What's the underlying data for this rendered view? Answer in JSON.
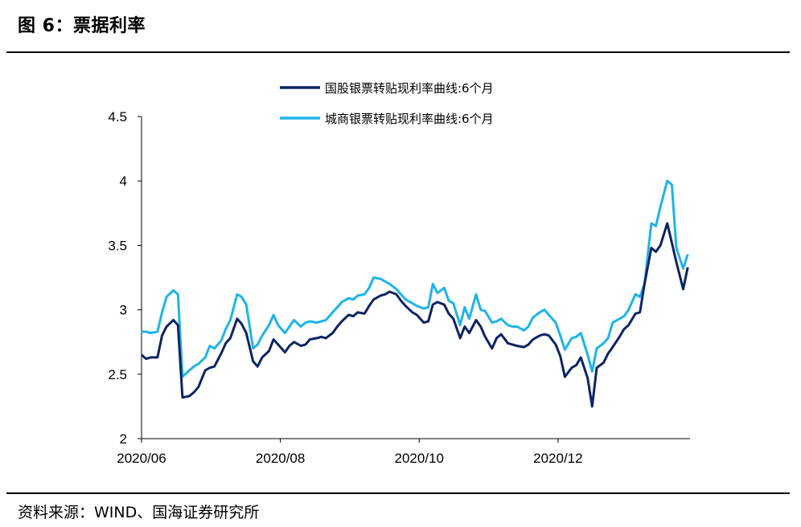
{
  "header": {
    "title": "图 6：票据利率"
  },
  "footer": {
    "source": "资料来源：WIND、国海证券研究所"
  },
  "colors": {
    "series_0": "#0d2463",
    "series_1": "#1eb4e8"
  },
  "chart_data": {
    "type": "line",
    "title": "",
    "xlabel": "",
    "ylabel": "",
    "ylim": [
      2,
      4.5
    ],
    "yticks": [
      "2",
      "2.5",
      "3",
      "3.5",
      "4",
      "4.5"
    ],
    "xticks": [
      "2020/06",
      "2020/08",
      "2020/10",
      "2020/12"
    ],
    "xlim": [
      "2020/06",
      "2021/01"
    ],
    "legend": "top-center",
    "grid": false,
    "series": [
      {
        "name": "国股银票转贴现利率曲线:6个月",
        "color": "#0d2463",
        "x": [
          "2020-06-01",
          "2020-06-03",
          "2020-06-05",
          "2020-06-08",
          "2020-06-10",
          "2020-06-12",
          "2020-06-15",
          "2020-06-17",
          "2020-06-19",
          "2020-06-22",
          "2020-06-24",
          "2020-06-26",
          "2020-06-29",
          "2020-07-01",
          "2020-07-03",
          "2020-07-06",
          "2020-07-08",
          "2020-07-10",
          "2020-07-13",
          "2020-07-15",
          "2020-07-17",
          "2020-07-20",
          "2020-07-22",
          "2020-07-24",
          "2020-07-27",
          "2020-07-29",
          "2020-07-31",
          "2020-08-03",
          "2020-08-05",
          "2020-08-07",
          "2020-08-10",
          "2020-08-12",
          "2020-08-14",
          "2020-08-17",
          "2020-08-19",
          "2020-08-21",
          "2020-08-24",
          "2020-08-26",
          "2020-08-28",
          "2020-08-31",
          "2020-09-02",
          "2020-09-04",
          "2020-09-07",
          "2020-09-09",
          "2020-09-11",
          "2020-09-14",
          "2020-09-16",
          "2020-09-18",
          "2020-09-21",
          "2020-09-23",
          "2020-09-25",
          "2020-09-28",
          "2020-09-30",
          "2020-10-03",
          "2020-10-05",
          "2020-10-07",
          "2020-10-09",
          "2020-10-12",
          "2020-10-14",
          "2020-10-16",
          "2020-10-19",
          "2020-10-21",
          "2020-10-23",
          "2020-10-26",
          "2020-10-28",
          "2020-10-30",
          "2020-11-02",
          "2020-11-04",
          "2020-11-06",
          "2020-11-09",
          "2020-11-11",
          "2020-11-13",
          "2020-11-16",
          "2020-11-18",
          "2020-11-20",
          "2020-11-23",
          "2020-11-25",
          "2020-11-27",
          "2020-11-30",
          "2020-12-02",
          "2020-12-04",
          "2020-12-07",
          "2020-12-09",
          "2020-12-11",
          "2020-12-14",
          "2020-12-16",
          "2020-12-18",
          "2020-12-21",
          "2020-12-23",
          "2020-12-25",
          "2020-12-28",
          "2020-12-30",
          "2021-01-01",
          "2021-01-04",
          "2021-01-06",
          "2021-01-08",
          "2021-01-11",
          "2021-01-13",
          "2021-01-15",
          "2021-01-18",
          "2021-01-20",
          "2021-01-22",
          "2021-01-25",
          "2021-01-27"
        ],
        "values": [
          2.65,
          2.62,
          2.63,
          2.63,
          2.8,
          2.87,
          2.92,
          2.88,
          2.32,
          2.33,
          2.36,
          2.4,
          2.53,
          2.55,
          2.56,
          2.66,
          2.74,
          2.78,
          2.93,
          2.89,
          2.82,
          2.6,
          2.56,
          2.63,
          2.68,
          2.77,
          2.73,
          2.67,
          2.72,
          2.75,
          2.72,
          2.73,
          2.77,
          2.78,
          2.79,
          2.78,
          2.82,
          2.87,
          2.91,
          2.96,
          2.95,
          2.98,
          2.97,
          3.03,
          3.08,
          3.11,
          3.12,
          3.14,
          3.12,
          3.07,
          3.03,
          2.98,
          2.96,
          2.9,
          2.91,
          3.04,
          3.06,
          3.04,
          2.97,
          2.93,
          2.78,
          2.87,
          2.82,
          2.92,
          2.87,
          2.79,
          2.7,
          2.78,
          2.81,
          2.74,
          2.73,
          2.72,
          2.71,
          2.73,
          2.77,
          2.8,
          2.81,
          2.8,
          2.73,
          2.64,
          2.48,
          2.55,
          2.57,
          2.63,
          2.47,
          2.25,
          2.55,
          2.59,
          2.66,
          2.71,
          2.79,
          2.85,
          2.88,
          2.97,
          2.98,
          3.2,
          3.48,
          3.45,
          3.5,
          3.67,
          3.52,
          3.37,
          3.16,
          3.33
        ]
      },
      {
        "name": "城商银票转贴现利率曲线:6个月",
        "color": "#1eb4e8",
        "x": [
          "2020-06-01",
          "2020-06-03",
          "2020-06-05",
          "2020-06-08",
          "2020-06-10",
          "2020-06-12",
          "2020-06-15",
          "2020-06-17",
          "2020-06-19",
          "2020-06-22",
          "2020-06-24",
          "2020-06-26",
          "2020-06-29",
          "2020-07-01",
          "2020-07-03",
          "2020-07-06",
          "2020-07-08",
          "2020-07-10",
          "2020-07-13",
          "2020-07-15",
          "2020-07-17",
          "2020-07-20",
          "2020-07-22",
          "2020-07-24",
          "2020-07-27",
          "2020-07-29",
          "2020-07-31",
          "2020-08-03",
          "2020-08-05",
          "2020-08-07",
          "2020-08-10",
          "2020-08-12",
          "2020-08-14",
          "2020-08-17",
          "2020-08-19",
          "2020-08-21",
          "2020-08-24",
          "2020-08-26",
          "2020-08-28",
          "2020-08-31",
          "2020-09-02",
          "2020-09-04",
          "2020-09-07",
          "2020-09-09",
          "2020-09-11",
          "2020-09-14",
          "2020-09-16",
          "2020-09-18",
          "2020-09-21",
          "2020-09-23",
          "2020-09-25",
          "2020-09-28",
          "2020-09-30",
          "2020-10-03",
          "2020-10-05",
          "2020-10-07",
          "2020-10-09",
          "2020-10-12",
          "2020-10-14",
          "2020-10-16",
          "2020-10-19",
          "2020-10-21",
          "2020-10-23",
          "2020-10-26",
          "2020-10-28",
          "2020-10-30",
          "2020-11-02",
          "2020-11-04",
          "2020-11-06",
          "2020-11-09",
          "2020-11-11",
          "2020-11-13",
          "2020-11-16",
          "2020-11-18",
          "2020-11-20",
          "2020-11-23",
          "2020-11-25",
          "2020-11-27",
          "2020-11-30",
          "2020-12-02",
          "2020-12-04",
          "2020-12-07",
          "2020-12-09",
          "2020-12-11",
          "2020-12-14",
          "2020-12-16",
          "2020-12-18",
          "2020-12-21",
          "2020-12-23",
          "2020-12-25",
          "2020-12-28",
          "2020-12-30",
          "2021-01-01",
          "2021-01-04",
          "2021-01-06",
          "2021-01-08",
          "2021-01-11",
          "2021-01-13",
          "2021-01-15",
          "2021-01-18",
          "2021-01-20",
          "2021-01-22",
          "2021-01-25",
          "2021-01-27"
        ],
        "values": [
          2.83,
          2.83,
          2.82,
          2.83,
          2.98,
          3.1,
          3.15,
          3.12,
          2.48,
          2.53,
          2.56,
          2.58,
          2.63,
          2.72,
          2.7,
          2.76,
          2.85,
          2.92,
          3.12,
          3.1,
          3.04,
          2.7,
          2.73,
          2.8,
          2.88,
          2.96,
          2.88,
          2.82,
          2.87,
          2.92,
          2.87,
          2.9,
          2.91,
          2.9,
          2.91,
          2.92,
          2.98,
          3.02,
          3.06,
          3.09,
          3.08,
          3.11,
          3.12,
          3.17,
          3.25,
          3.24,
          3.22,
          3.2,
          3.16,
          3.12,
          3.08,
          3.05,
          3.03,
          3.01,
          3.02,
          3.2,
          3.13,
          3.17,
          3.07,
          3.05,
          2.88,
          3.02,
          2.93,
          3.12,
          3.0,
          2.99,
          2.9,
          2.91,
          2.93,
          2.88,
          2.87,
          2.87,
          2.84,
          2.87,
          2.94,
          2.98,
          3.0,
          2.96,
          2.9,
          2.8,
          2.69,
          2.78,
          2.79,
          2.82,
          2.65,
          2.52,
          2.7,
          2.74,
          2.78,
          2.9,
          2.93,
          2.95,
          3.0,
          3.12,
          3.1,
          3.2,
          3.67,
          3.65,
          3.8,
          4.0,
          3.97,
          3.48,
          3.32,
          3.43
        ]
      }
    ]
  }
}
